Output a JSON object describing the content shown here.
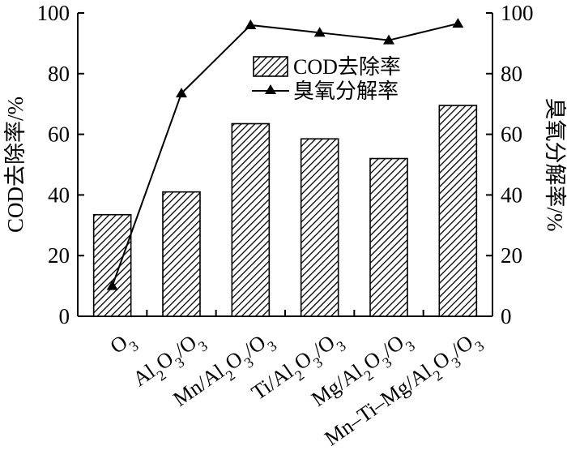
{
  "chart_data": {
    "type": "bar",
    "categories": [
      "O3",
      "Al2O3/O3",
      "Mn/Al2O3/O3",
      "Ti/Al2O3/O3",
      "Mg/Al2O3/O3",
      "Mn–Ti–Mg/Al2O3/O3"
    ],
    "series": [
      {
        "name": "COD去除率",
        "type": "bar",
        "axis": "left",
        "pattern": "diagonal-hatch",
        "values": [
          33.5,
          41.0,
          63.5,
          58.5,
          52.0,
          69.5
        ]
      },
      {
        "name": "臭氧分解率",
        "type": "line",
        "axis": "right",
        "marker": "triangle",
        "values": [
          10.0,
          73.5,
          96.0,
          93.5,
          91.0,
          96.5
        ]
      }
    ],
    "ylabel": "COD去除率/%",
    "y2label": "臭氧分解率/%",
    "ylim": [
      0,
      100
    ],
    "y2lim": [
      0,
      100
    ],
    "yticks": [
      0,
      20,
      40,
      60,
      80,
      100
    ],
    "y2ticks": [
      0,
      20,
      40,
      60,
      80,
      100
    ],
    "grid": false,
    "legend_position": "upper-center-right",
    "colors": {
      "ink": "#000000",
      "bar_fill": "#ffffff"
    }
  }
}
